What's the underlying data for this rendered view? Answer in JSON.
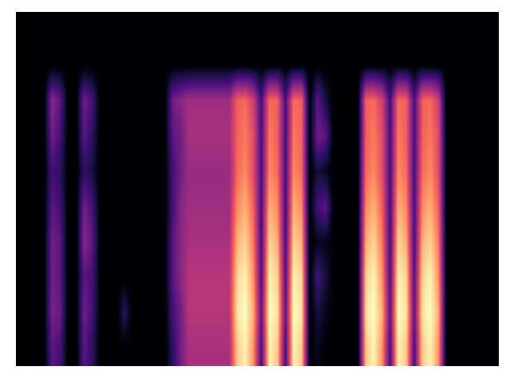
{
  "chart_data": {
    "type": "heatmap",
    "tick_labels": false,
    "cells": [
      [
        0,
        0,
        0,
        0,
        0,
        0,
        0,
        0,
        0,
        0,
        0,
        0,
        0,
        0,
        0,
        0,
        0,
        0,
        0,
        0,
        0,
        0,
        0,
        0,
        0,
        0,
        0,
        0,
        0,
        0,
        0,
        0,
        0,
        0,
        0,
        0,
        0,
        0,
        0,
        0,
        0,
        0,
        0,
        0,
        0,
        0,
        0,
        0,
        0,
        0,
        0,
        0,
        0,
        0,
        0,
        0,
        0,
        0,
        0,
        0
      ],
      [
        0,
        0,
        0,
        0,
        0,
        0,
        0,
        0,
        0,
        0,
        0,
        0,
        0,
        0,
        0,
        0,
        0,
        0,
        0,
        0,
        0,
        0,
        0,
        0,
        0,
        0,
        0,
        0,
        0,
        0,
        0,
        0,
        0,
        0,
        0,
        0,
        0,
        0,
        0,
        0,
        0,
        0,
        0,
        0,
        0,
        0,
        0,
        0,
        0,
        0,
        0,
        0,
        0,
        0,
        0,
        0,
        0,
        0,
        0,
        0
      ],
      [
        0,
        0,
        0,
        0,
        0.35,
        0.25,
        0,
        0,
        0.3,
        0.2,
        0,
        0,
        0,
        0,
        0,
        0,
        0,
        0,
        0,
        0.3,
        0.35,
        0.4,
        0.4,
        0.4,
        0.4,
        0.4,
        0.4,
        0.6,
        0.62,
        0.5,
        0.2,
        0.62,
        0.6,
        0.2,
        0.62,
        0.6,
        0,
        0.25,
        0.1,
        0,
        0,
        0,
        0,
        0.6,
        0.62,
        0.5,
        0.2,
        0.62,
        0.6,
        0.2,
        0.6,
        0.62,
        0.5,
        0,
        0,
        0,
        0,
        0,
        0,
        0
      ],
      [
        0,
        0,
        0,
        0,
        0.3,
        0.2,
        0,
        0,
        0.25,
        0.15,
        0,
        0,
        0,
        0,
        0,
        0,
        0,
        0,
        0,
        0.25,
        0.3,
        0.42,
        0.42,
        0.42,
        0.42,
        0.42,
        0.42,
        0.6,
        0.65,
        0.55,
        0.2,
        0.65,
        0.6,
        0.2,
        0.65,
        0.6,
        0,
        0.3,
        0.25,
        0,
        0,
        0,
        0,
        0.6,
        0.65,
        0.55,
        0.2,
        0.65,
        0.6,
        0.2,
        0.6,
        0.65,
        0.55,
        0,
        0,
        0,
        0,
        0,
        0,
        0
      ],
      [
        0,
        0,
        0,
        0,
        0.2,
        0.15,
        0,
        0,
        0.15,
        0.1,
        0,
        0,
        0,
        0,
        0,
        0,
        0,
        0,
        0,
        0.2,
        0.3,
        0.38,
        0.38,
        0.38,
        0.38,
        0.38,
        0.38,
        0.62,
        0.68,
        0.55,
        0.2,
        0.68,
        0.62,
        0.2,
        0.68,
        0.62,
        0,
        0.1,
        0.05,
        0,
        0,
        0,
        0,
        0.62,
        0.68,
        0.55,
        0.2,
        0.68,
        0.62,
        0.2,
        0.62,
        0.68,
        0.55,
        0,
        0,
        0,
        0,
        0,
        0,
        0
      ],
      [
        0,
        0,
        0,
        0,
        0.25,
        0.2,
        0,
        0,
        0.3,
        0.2,
        0,
        0,
        0,
        0,
        0,
        0,
        0,
        0,
        0,
        0.2,
        0.35,
        0.4,
        0.4,
        0.4,
        0.4,
        0.4,
        0.4,
        0.68,
        0.75,
        0.6,
        0.2,
        0.75,
        0.68,
        0.2,
        0.75,
        0.68,
        0,
        0.2,
        0.25,
        0,
        0,
        0,
        0,
        0.68,
        0.75,
        0.6,
        0.2,
        0.75,
        0.68,
        0.2,
        0.68,
        0.75,
        0.6,
        0,
        0,
        0,
        0,
        0,
        0,
        0
      ],
      [
        0,
        0,
        0,
        0,
        0.3,
        0.25,
        0,
        0,
        0.35,
        0.25,
        0,
        0,
        0,
        0,
        0,
        0,
        0,
        0,
        0,
        0.25,
        0.35,
        0.42,
        0.42,
        0.42,
        0.42,
        0.42,
        0.42,
        0.75,
        0.82,
        0.65,
        0.2,
        0.82,
        0.75,
        0.2,
        0.82,
        0.75,
        0,
        0.05,
        0.05,
        0,
        0,
        0,
        0,
        0.75,
        0.82,
        0.65,
        0.2,
        0.82,
        0.75,
        0.2,
        0.75,
        0.82,
        0.65,
        0,
        0,
        0,
        0,
        0,
        0,
        0
      ],
      [
        0,
        0,
        0,
        0,
        0.3,
        0.25,
        0,
        0,
        0.25,
        0.2,
        0,
        0,
        0,
        0,
        0,
        0,
        0,
        0,
        0,
        0.25,
        0.35,
        0.45,
        0.45,
        0.45,
        0.45,
        0.45,
        0.45,
        0.82,
        0.88,
        0.7,
        0.22,
        0.88,
        0.82,
        0.22,
        0.88,
        0.82,
        0,
        0.2,
        0.1,
        0,
        0,
        0,
        0,
        0.82,
        0.88,
        0.7,
        0.22,
        0.88,
        0.82,
        0.22,
        0.82,
        0.88,
        0.7,
        0,
        0,
        0,
        0,
        0,
        0,
        0
      ],
      [
        0,
        0,
        0,
        0,
        0.32,
        0.28,
        0,
        0,
        0.3,
        0.2,
        0,
        0,
        0,
        0.15,
        0,
        0,
        0,
        0,
        0,
        0.2,
        0.3,
        0.45,
        0.45,
        0.45,
        0.45,
        0.45,
        0.45,
        0.85,
        0.9,
        0.75,
        0.25,
        0.9,
        0.85,
        0.25,
        0.9,
        0.85,
        0,
        0.1,
        0.05,
        0,
        0,
        0,
        0,
        0.85,
        0.9,
        0.75,
        0.25,
        0.9,
        0.85,
        0.25,
        0.85,
        0.9,
        0.75,
        0,
        0,
        0,
        0,
        0,
        0,
        0
      ],
      [
        0,
        0,
        0,
        0,
        0.25,
        0.2,
        0,
        0,
        0.25,
        0.15,
        0,
        0,
        0,
        0,
        0,
        0,
        0,
        0,
        0,
        0.15,
        0.3,
        0.42,
        0.42,
        0.42,
        0.42,
        0.42,
        0.42,
        0.8,
        0.88,
        0.7,
        0.2,
        0.88,
        0.8,
        0.2,
        0.88,
        0.8,
        0,
        0.05,
        0,
        0,
        0,
        0,
        0,
        0.8,
        0.88,
        0.7,
        0.2,
        0.88,
        0.8,
        0.2,
        0.8,
        0.88,
        0.7,
        0,
        0,
        0,
        0,
        0,
        0,
        0
      ]
    ]
  }
}
